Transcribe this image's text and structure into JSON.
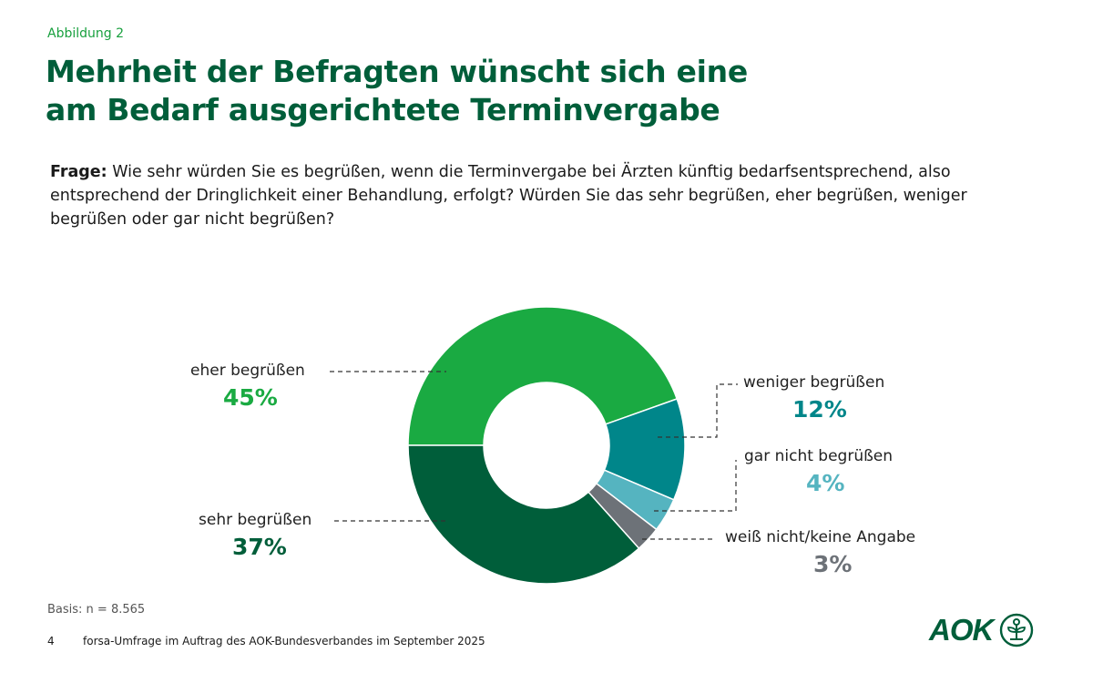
{
  "figure_label": "Abbildung 2",
  "title_line1": "Mehrheit der Befragten wünscht sich eine",
  "title_line2": "am Bedarf ausgerichtete Terminvergabe",
  "question": {
    "prefix": "Frage:",
    "text": " Wie sehr würden Sie es begrüßen, wenn die Terminvergabe bei Ärzten künftig bedarfsentsprechend, also entsprechend der Dringlichkeit einer Behandlung, erfolgt? Würden Sie das sehr begrüßen, eher begrüßen, weniger begrüßen oder gar nicht begrüßen?"
  },
  "chart_data": {
    "type": "pie",
    "subtype": "donut",
    "title": "Mehrheit der Befragten wünscht sich eine am Bedarf ausgerichtete Terminvergabe",
    "categories": [
      "eher begrüßen",
      "weniger begrüßen",
      "gar nicht begrüßen",
      "weiß nicht/keine Angabe",
      "sehr begrüßen"
    ],
    "values": [
      45,
      12,
      4,
      3,
      37
    ],
    "unit": "%",
    "value_labels": [
      "45%",
      "12%",
      "4%",
      "3%",
      "37%"
    ],
    "colors": [
      "#1aaa42",
      "#00868a",
      "#55b4c0",
      "#6d7278",
      "#005e3a"
    ],
    "start_angle": "9 o'clock, clockwise",
    "legend": "none (direct labels with dashed leader lines)"
  },
  "basis": "Basis: n = 8.565",
  "footer": {
    "page_number": "4",
    "source": "forsa-Umfrage im Auftrag des AOK-Bundesverbandes im September 2025"
  },
  "logo": {
    "text": "AOK",
    "icon": "aok-tree-icon"
  },
  "colors": {
    "brand_dark": "#005e3a",
    "brand_light": "#1aaa42"
  }
}
